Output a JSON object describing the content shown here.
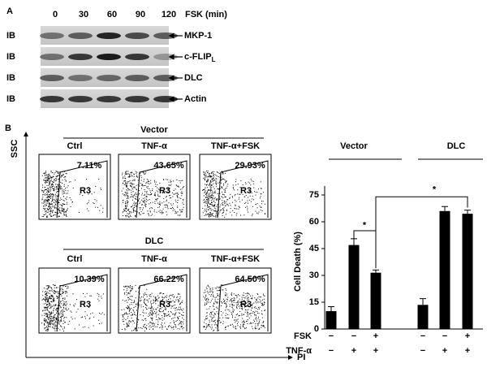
{
  "panel_a": {
    "label": "A",
    "time_label": "FSK (min)",
    "times": [
      "0",
      "30",
      "60",
      "90",
      "120"
    ],
    "rows": [
      {
        "ib": "IB",
        "name": "MKP-1"
      },
      {
        "ib": "IB",
        "name": "c-FLIP",
        "sub": "L"
      },
      {
        "ib": "IB",
        "name": "DLC"
      },
      {
        "ib": "IB",
        "name": "Actin"
      }
    ]
  },
  "panel_b": {
    "label": "B",
    "y_axis": "SSC",
    "x_axis": "PI",
    "gate": "R3",
    "groups": [
      {
        "name": "Vector",
        "plots": [
          {
            "label": "Ctrl",
            "pct": "7.11%"
          },
          {
            "label": "TNF-α",
            "pct": "43.65%"
          },
          {
            "label": "TNF-α+FSK",
            "pct": "29.93%"
          }
        ]
      },
      {
        "name": "DLC",
        "plots": [
          {
            "label": "Ctrl",
            "pct": "10.39%"
          },
          {
            "label": "TNF-α",
            "pct": "66.22%"
          },
          {
            "label": "TNF-α+FSK",
            "pct": "64.50%"
          }
        ]
      }
    ]
  },
  "chart_data": {
    "type": "bar",
    "y_label": "Cell Death (%)",
    "groups": [
      "Vector",
      "DLC"
    ],
    "values": [
      10,
      47,
      31.5,
      13.5,
      66,
      64.5
    ],
    "errors": [
      2.5,
      3.5,
      1.5,
      3.5,
      2.5,
      2
    ],
    "color": "#000000",
    "ylim": [
      0,
      80
    ],
    "yticks": [
      0,
      15,
      30,
      45,
      60,
      75
    ],
    "rows": [
      {
        "name": "FSK",
        "signs": [
          "−",
          "−",
          "+",
          "−",
          "−",
          "+"
        ]
      },
      {
        "name": "TNF-α",
        "signs": [
          "−",
          "+",
          "+",
          "−",
          "+",
          "+"
        ]
      }
    ],
    "significance": [
      "*",
      "*"
    ]
  }
}
